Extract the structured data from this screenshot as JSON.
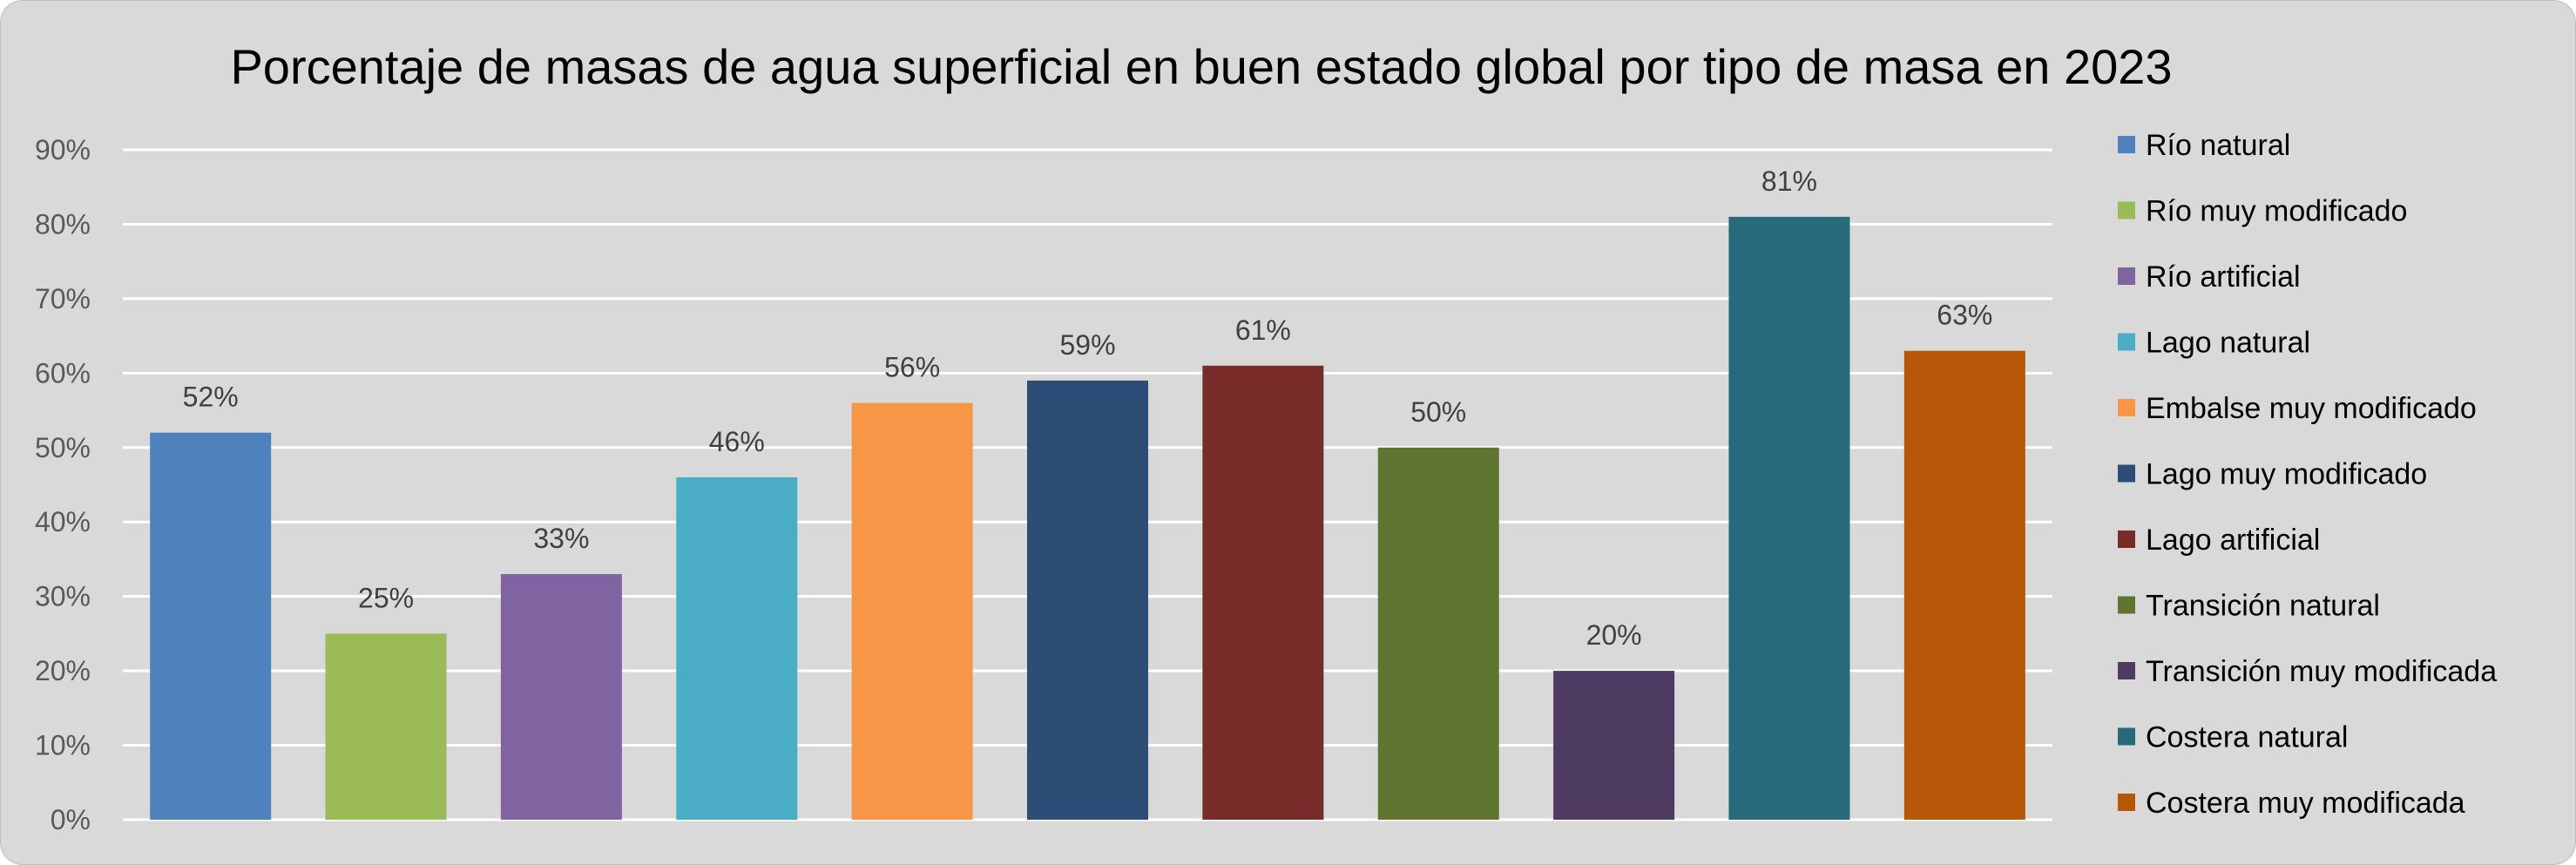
{
  "chart_data": {
    "type": "bar",
    "title": "Porcentaje de masas de agua superficial en buen estado global por tipo de masa en 2023",
    "xlabel": "",
    "ylabel": "",
    "ylim": [
      0,
      90
    ],
    "yticks": [
      "0%",
      "10%",
      "20%",
      "30%",
      "40%",
      "50%",
      "60%",
      "70%",
      "80%",
      "90%"
    ],
    "grid": true,
    "legend_position": "right",
    "categories": [
      "Río natural",
      "Río muy modificado",
      "Río artificial",
      "Lago natural",
      "Embalse muy modificado",
      "Lago muy modificado",
      "Lago artificial",
      "Transición natural",
      "Transición muy modificada",
      "Costera natural",
      "Costera muy modificada"
    ],
    "values": [
      52,
      25,
      33,
      46,
      56,
      59,
      61,
      50,
      20,
      81,
      63
    ],
    "data_labels": [
      "52%",
      "25%",
      "33%",
      "46%",
      "56%",
      "59%",
      "61%",
      "50%",
      "20%",
      "81%",
      "63%"
    ],
    "colors": [
      "#4f81bd",
      "#9bbb59",
      "#8064a2",
      "#4bacc6",
      "#f79646",
      "#2c4d75",
      "#772c2a",
      "#5f7530",
      "#4d3b62",
      "#276a7c",
      "#b65708"
    ]
  }
}
